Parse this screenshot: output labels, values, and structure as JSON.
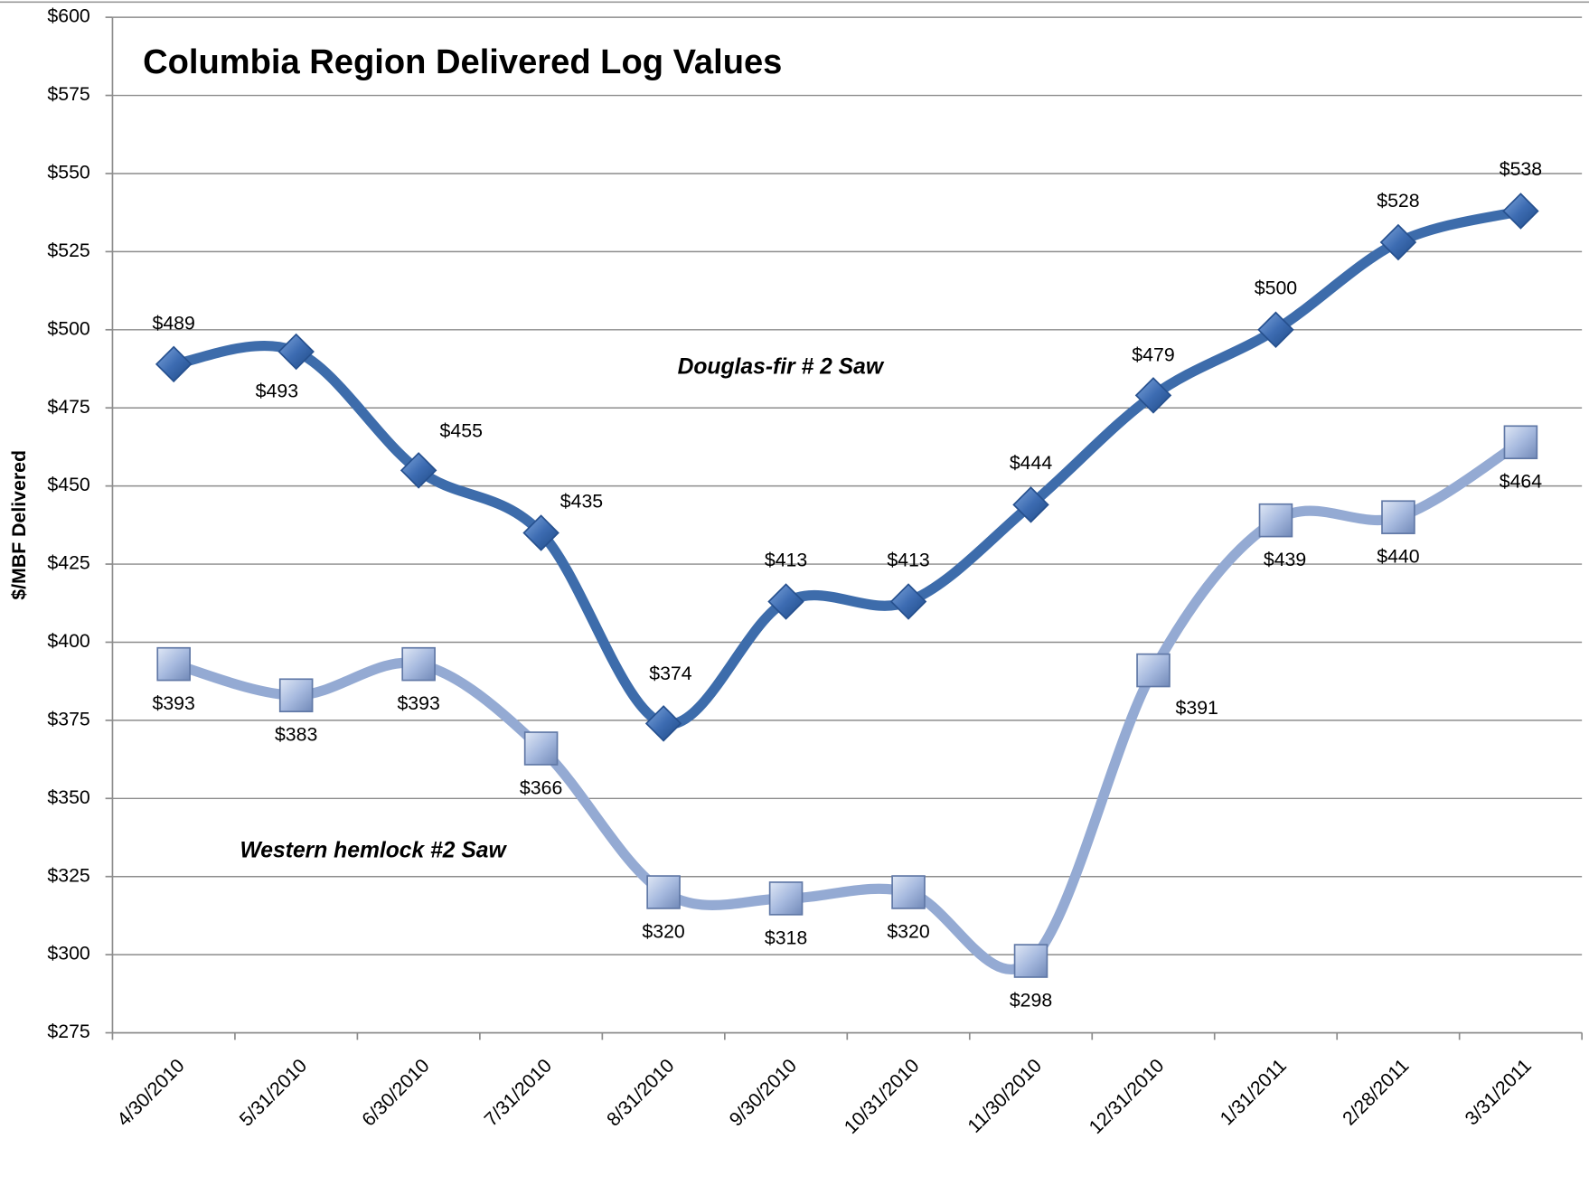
{
  "chart_data": {
    "type": "line",
    "title": "Columbia Region Delivered Log Values",
    "y_label": "$/MBF Delivered",
    "categories": [
      "4/30/2010",
      "5/31/2010",
      "6/30/2010",
      "7/31/2010",
      "8/31/2010",
      "9/30/2010",
      "10/31/2010",
      "11/30/2010",
      "12/31/2010",
      "1/31/2011",
      "2/28/2011",
      "3/31/2011"
    ],
    "series": [
      {
        "name": "Douglas-fir # 2 Saw",
        "color": "#3d6cab",
        "marker": "diamond",
        "values": [
          489,
          493,
          455,
          435,
          374,
          413,
          413,
          444,
          479,
          500,
          528,
          538
        ],
        "value_labels": [
          "$489",
          "$493",
          "$455",
          "$435",
          "$374",
          "$413",
          "$413",
          "$444",
          "$479",
          "$500",
          "$528",
          "$538"
        ]
      },
      {
        "name": "Western hemlock #2 Saw",
        "color": "#94aad3",
        "marker": "square",
        "values": [
          393,
          383,
          393,
          366,
          320,
          318,
          320,
          298,
          391,
          439,
          440,
          464
        ],
        "value_labels": [
          "$393",
          "$383",
          "$393",
          "$366",
          "$320",
          "$318",
          "$320",
          "$298",
          "$391",
          "$439",
          "$440",
          "$464"
        ]
      }
    ],
    "ylim": [
      275,
      600
    ],
    "yticks": [
      {
        "value": 275,
        "label": "$275"
      },
      {
        "value": 300,
        "label": "$300"
      },
      {
        "value": 325,
        "label": "$325"
      },
      {
        "value": 350,
        "label": "$350"
      },
      {
        "value": 375,
        "label": "$375"
      },
      {
        "value": 400,
        "label": "$400"
      },
      {
        "value": 425,
        "label": "$425"
      },
      {
        "value": 450,
        "label": "$450"
      },
      {
        "value": 475,
        "label": "$475"
      },
      {
        "value": 500,
        "label": "$500"
      },
      {
        "value": 525,
        "label": "$525"
      },
      {
        "value": 550,
        "label": "$550"
      },
      {
        "value": 575,
        "label": "$575"
      },
      {
        "value": 600,
        "label": "$600"
      }
    ],
    "grid": true
  }
}
